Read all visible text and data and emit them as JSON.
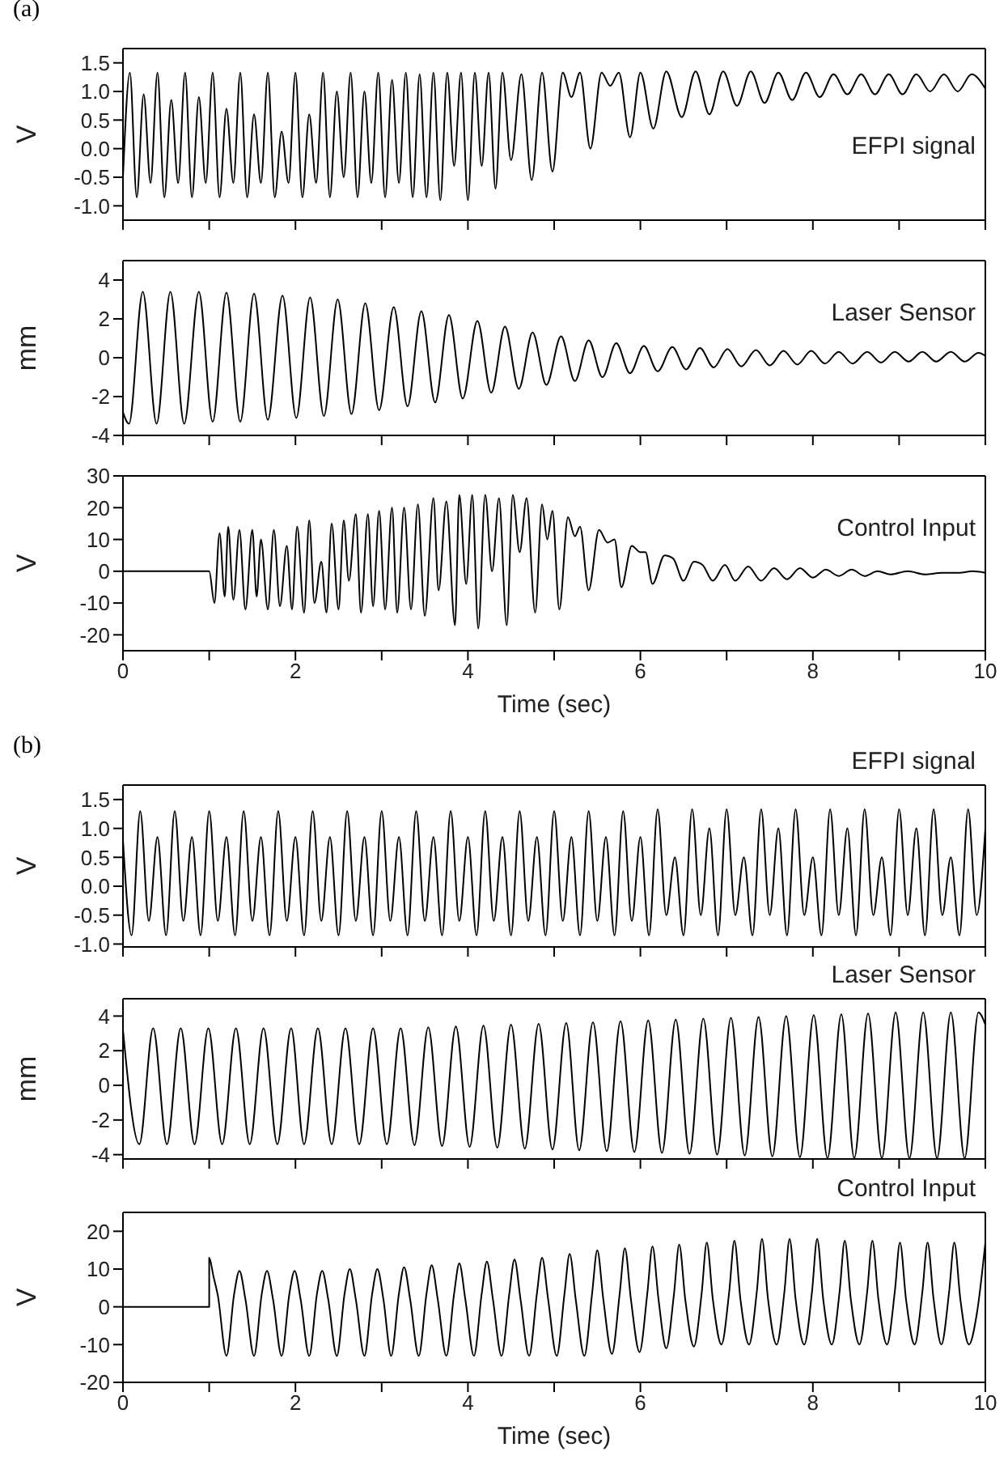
{
  "chart_data": [
    {
      "type": "line",
      "title": "EFPI signal",
      "ylabel": "V",
      "annotations": [
        "(a)"
      ],
      "tick_labels": "y",
      "xlim": [
        0,
        10
      ],
      "xticks": [
        0,
        {
          "value": 1,
          "label": null
        },
        2,
        {
          "value": 3,
          "label": null
        },
        4,
        {
          "value": 5,
          "label": null
        },
        6,
        {
          "value": 7,
          "label": null
        },
        8,
        {
          "value": 9,
          "label": null
        },
        10
      ],
      "ylim": [
        -1.25,
        1.75
      ],
      "yticks": [
        {
          "value": -1,
          "label": "-1.0"
        },
        -0.5,
        {
          "value": 0,
          "label": "0.0"
        },
        0.5,
        {
          "value": 1,
          "label": "1.0"
        },
        1.5
      ],
      "series": [
        {
          "color": "#000000",
          "x": [
            0,
            0.08,
            0.16,
            0.24,
            0.32,
            0.4,
            0.48,
            0.56,
            0.64,
            0.72,
            0.8,
            0.88,
            0.96,
            1.04,
            1.12,
            1.2,
            1.28,
            1.36,
            1.44,
            1.52,
            1.6,
            1.68,
            1.76,
            1.84,
            1.92,
            2,
            2.08,
            2.16,
            2.24,
            2.32,
            2.4,
            2.48,
            2.56,
            2.64,
            2.72,
            2.8,
            2.88,
            2.96,
            3.04,
            3.12,
            3.2,
            3.28,
            3.36,
            3.44,
            3.52,
            3.6,
            3.68,
            3.76,
            3.84,
            3.92,
            4,
            4.08,
            4.16,
            4.24,
            4.32,
            4.4,
            4.5,
            4.62,
            4.74,
            4.86,
            4.98,
            5.1,
            5.2,
            5.3,
            5.42,
            5.55,
            5.65,
            5.75,
            5.88,
            6,
            6.15,
            6.3,
            6.48,
            6.64,
            6.8,
            6.96,
            7.12,
            7.28,
            7.44,
            7.6,
            7.76,
            7.92,
            8.08,
            8.24,
            8.4,
            8.56,
            8.72,
            8.88,
            9.04,
            9.2,
            9.36,
            9.52,
            9.68,
            9.84,
            10
          ],
          "values": [
            -0.5,
            1.33,
            -0.85,
            0.95,
            -0.6,
            1.33,
            -0.85,
            0.85,
            -0.6,
            1.33,
            -0.85,
            0.9,
            -0.6,
            1.33,
            -0.85,
            0.7,
            -0.6,
            1.33,
            -0.85,
            0.6,
            -0.6,
            1.33,
            -0.85,
            0.3,
            -0.6,
            1.33,
            -0.85,
            0.6,
            -0.6,
            1.33,
            -0.85,
            1,
            -0.5,
            1.33,
            -0.85,
            1,
            -0.6,
            1.33,
            -0.85,
            1.2,
            -0.6,
            1.33,
            -0.85,
            1.3,
            -0.85,
            1.33,
            -0.9,
            1.33,
            -0.3,
            1.33,
            -0.9,
            1.33,
            -0.3,
            1.33,
            -0.7,
            1.33,
            -0.2,
            1.3,
            -0.55,
            1.33,
            -0.4,
            1.33,
            0.9,
            1.33,
            0,
            1.33,
            1.1,
            1.33,
            0.2,
            1.33,
            0.35,
            1.35,
            0.55,
            1.35,
            0.6,
            1.35,
            0.75,
            1.35,
            0.8,
            1.33,
            0.85,
            1.33,
            0.9,
            1.3,
            0.95,
            1.3,
            0.95,
            1.3,
            0.95,
            1.3,
            1,
            1.3,
            1,
            1.3,
            1.05
          ]
        }
      ]
    },
    {
      "type": "line",
      "title": "Laser Sensor",
      "ylabel": "mm",
      "tick_labels": "y",
      "xlim": [
        0,
        10
      ],
      "xticks": [
        0,
        {
          "value": 1,
          "label": null
        },
        2,
        {
          "value": 3,
          "label": null
        },
        4,
        {
          "value": 5,
          "label": null
        },
        6,
        {
          "value": 7,
          "label": null
        },
        8,
        {
          "value": 9,
          "label": null
        },
        10
      ],
      "ylim": [
        -4,
        5
      ],
      "yticks": [
        -4,
        -2,
        0,
        2,
        4
      ],
      "series": [
        {
          "color": "#000000",
          "x": [
            0,
            0.07,
            0.23,
            0.39,
            0.55,
            0.71,
            0.88,
            1.04,
            1.2,
            1.36,
            1.52,
            1.68,
            1.85,
            2.01,
            2.17,
            2.33,
            2.49,
            2.65,
            2.81,
            2.97,
            3.14,
            3.3,
            3.46,
            3.62,
            3.78,
            3.94,
            4.11,
            4.27,
            4.43,
            4.59,
            4.75,
            4.91,
            5.08,
            5.24,
            5.4,
            5.56,
            5.72,
            5.88,
            6.04,
            6.2,
            6.37,
            6.53,
            6.69,
            6.85,
            7.01,
            7.17,
            7.34,
            7.5,
            7.66,
            7.82,
            7.98,
            8.14,
            8.3,
            8.46,
            8.63,
            8.79,
            8.95,
            9.11,
            9.27,
            9.43,
            9.6,
            9.76,
            9.92,
            10
          ],
          "values": [
            -2.8,
            -3.4,
            3.4,
            -3.4,
            3.4,
            -3.4,
            3.4,
            -3.3,
            3.35,
            -3.3,
            3.3,
            -3.2,
            3.2,
            -3.1,
            3.1,
            -3,
            3,
            -2.9,
            2.8,
            -2.7,
            2.6,
            -2.5,
            2.4,
            -2.3,
            2.2,
            -2.1,
            1.9,
            -1.8,
            1.6,
            -1.6,
            1.3,
            -1.4,
            1.1,
            -1.2,
            0.9,
            -1,
            0.75,
            -0.8,
            0.6,
            -0.7,
            0.55,
            -0.6,
            0.5,
            -0.5,
            0.45,
            -0.45,
            0.4,
            -0.4,
            0.35,
            -0.35,
            0.35,
            -0.3,
            0.3,
            -0.3,
            0.3,
            -0.25,
            0.3,
            -0.2,
            0.3,
            -0.2,
            0.3,
            -0.2,
            0.25,
            0.1
          ]
        }
      ]
    },
    {
      "type": "line",
      "title": "Control Input",
      "ylabel": "V",
      "xlabel": "Time (sec)",
      "xlim": [
        0,
        10
      ],
      "xticks": [
        0,
        {
          "value": 1,
          "label": null
        },
        2,
        {
          "value": 3,
          "label": null
        },
        4,
        {
          "value": 5,
          "label": null
        },
        6,
        {
          "value": 7,
          "label": null
        },
        8,
        {
          "value": 9,
          "label": null
        },
        10
      ],
      "ylim": [
        -25,
        30
      ],
      "yticks": [
        -20,
        -10,
        0,
        10,
        20,
        30
      ],
      "series": [
        {
          "color": "#000000",
          "x": [
            0,
            1,
            1.06,
            1.12,
            1.18,
            1.22,
            1.28,
            1.35,
            1.42,
            1.5,
            1.55,
            1.6,
            1.68,
            1.75,
            1.82,
            1.9,
            1.96,
            2.02,
            2.1,
            2.16,
            2.22,
            2.3,
            2.36,
            2.42,
            2.5,
            2.56,
            2.62,
            2.7,
            2.76,
            2.84,
            2.9,
            2.97,
            3.04,
            3.12,
            3.18,
            3.26,
            3.34,
            3.42,
            3.5,
            3.6,
            3.66,
            3.75,
            3.85,
            3.9,
            3.98,
            4.05,
            4.12,
            4.2,
            4.28,
            4.36,
            4.45,
            4.52,
            4.6,
            4.68,
            4.78,
            4.86,
            4.92,
            4.98,
            5.06,
            5.16,
            5.24,
            5.3,
            5.4,
            5.52,
            5.62,
            5.7,
            5.78,
            5.9,
            6,
            6.06,
            6.14,
            6.28,
            6.38,
            6.5,
            6.62,
            6.72,
            6.84,
            6.98,
            7.1,
            7.25,
            7.4,
            7.55,
            7.7,
            7.85,
            8,
            8.15,
            8.3,
            8.45,
            8.6,
            8.75,
            8.9,
            9.1,
            9.3,
            9.5,
            9.7,
            9.85,
            10
          ],
          "values": [
            0,
            0,
            -10,
            12,
            -8,
            14,
            -9,
            13,
            -12,
            13,
            -8,
            10,
            -12,
            13,
            -11,
            8,
            -12,
            14,
            -13,
            16,
            -10,
            3,
            -13,
            15,
            -12,
            16,
            -3,
            18,
            -13,
            18,
            -11,
            19,
            -12,
            20,
            -13,
            20,
            -12,
            21,
            -14,
            23,
            -6,
            22,
            -17,
            24,
            -4,
            24,
            -18,
            24,
            0,
            23,
            -17,
            24,
            6,
            23,
            -13,
            21,
            10,
            19,
            -12,
            17,
            11,
            14,
            -6,
            13,
            9,
            10,
            -5,
            8,
            6,
            6,
            -4,
            5,
            4,
            -3,
            3,
            2,
            -3,
            2,
            -3,
            1.5,
            -3,
            1,
            -2.5,
            1,
            -2,
            0.5,
            -1.5,
            0.5,
            -1.5,
            0,
            -1,
            0,
            -1,
            -0.5,
            -0.5,
            0,
            -0.5
          ]
        }
      ]
    },
    {
      "type": "line",
      "title": "EFPI signal",
      "ylabel": "V",
      "annotations": [
        "(b)"
      ],
      "tick_labels": "y",
      "xlim": [
        0,
        10
      ],
      "xticks": [
        0,
        {
          "value": 1,
          "label": null
        },
        2,
        {
          "value": 3,
          "label": null
        },
        4,
        {
          "value": 5,
          "label": null
        },
        6,
        {
          "value": 7,
          "label": null
        },
        8,
        {
          "value": 9,
          "label": null
        },
        10
      ],
      "ylim": [
        -1.05,
        1.75
      ],
      "yticks": [
        {
          "value": -1,
          "label": "-1.0"
        },
        -0.5,
        {
          "value": 0,
          "label": "0.0"
        },
        0.5,
        {
          "value": 1,
          "label": "1.0"
        },
        1.5
      ],
      "series": [
        {
          "color": "#000000",
          "x": [
            0,
            0.1,
            0.2,
            0.3,
            0.4,
            0.5,
            0.6,
            0.7,
            0.8,
            0.9,
            1,
            1.1,
            1.2,
            1.3,
            1.4,
            1.5,
            1.6,
            1.7,
            1.8,
            1.9,
            2,
            2.1,
            2.2,
            2.3,
            2.4,
            2.5,
            2.6,
            2.7,
            2.8,
            2.9,
            3,
            3.1,
            3.2,
            3.3,
            3.4,
            3.5,
            3.6,
            3.7,
            3.8,
            3.9,
            4,
            4.1,
            4.2,
            4.3,
            4.4,
            4.5,
            4.6,
            4.7,
            4.8,
            4.9,
            5,
            5.1,
            5.2,
            5.3,
            5.4,
            5.5,
            5.6,
            5.7,
            5.8,
            5.9,
            6,
            6.1,
            6.2,
            6.3,
            6.4,
            6.5,
            6.6,
            6.7,
            6.8,
            6.9,
            7,
            7.1,
            7.2,
            7.3,
            7.4,
            7.5,
            7.6,
            7.7,
            7.8,
            7.9,
            8,
            8.1,
            8.2,
            8.3,
            8.4,
            8.5,
            8.6,
            8.7,
            8.8,
            8.9,
            9,
            9.1,
            9.2,
            9.3,
            9.4,
            9.5,
            9.6,
            9.7,
            9.8,
            9.9,
            10
          ],
          "values": [
            0.8,
            -0.85,
            1.3,
            -0.6,
            0.85,
            -0.85,
            1.3,
            -0.6,
            0.85,
            -0.85,
            1.3,
            -0.6,
            0.85,
            -0.85,
            1.3,
            -0.6,
            0.85,
            -0.85,
            1.3,
            -0.6,
            0.85,
            -0.85,
            1.3,
            -0.6,
            0.85,
            -0.85,
            1.3,
            -0.6,
            0.85,
            -0.85,
            1.3,
            -0.6,
            0.85,
            -0.85,
            1.3,
            -0.6,
            0.85,
            -0.85,
            1.3,
            -0.6,
            0.85,
            -0.85,
            1.3,
            -0.6,
            0.85,
            -0.85,
            1.3,
            -0.6,
            0.85,
            -0.85,
            1.3,
            -0.6,
            0.85,
            -0.85,
            1.3,
            -0.6,
            0.85,
            -0.85,
            1.3,
            -0.6,
            0.85,
            -0.85,
            1.33,
            -0.5,
            0.5,
            -0.85,
            1.33,
            -0.5,
            1,
            -0.85,
            1.33,
            -0.5,
            0.5,
            -0.85,
            1.33,
            -0.5,
            1,
            -0.85,
            1.33,
            -0.5,
            0.5,
            -0.85,
            1.33,
            -0.5,
            1,
            -0.85,
            1.33,
            -0.5,
            0.5,
            -0.85,
            1.33,
            -0.5,
            1,
            -0.85,
            1.33,
            -0.5,
            0.5,
            -0.85,
            1.33,
            -0.5,
            1
          ]
        }
      ]
    },
    {
      "type": "line",
      "title": "Laser Sensor",
      "ylabel": "mm",
      "tick_labels": "y",
      "xlim": [
        0,
        10
      ],
      "xticks": [
        0,
        {
          "value": 1,
          "label": null
        },
        2,
        {
          "value": 3,
          "label": null
        },
        4,
        {
          "value": 5,
          "label": null
        },
        6,
        {
          "value": 7,
          "label": null
        },
        8,
        {
          "value": 9,
          "label": null
        },
        10
      ],
      "ylim": [
        -4.25,
        5
      ],
      "yticks": [
        -4,
        -2,
        0,
        2,
        4
      ],
      "series": [
        {
          "color": "#000000",
          "x": [
            0,
            0.19,
            0.35,
            0.51,
            0.67,
            0.83,
            0.99,
            1.15,
            1.31,
            1.47,
            1.63,
            1.79,
            1.95,
            2.1,
            2.26,
            2.42,
            2.58,
            2.74,
            2.9,
            3.06,
            3.22,
            3.38,
            3.54,
            3.7,
            3.86,
            4.02,
            4.18,
            4.34,
            4.5,
            4.66,
            4.82,
            4.98,
            5.14,
            5.29,
            5.45,
            5.61,
            5.77,
            5.93,
            6.09,
            6.25,
            6.41,
            6.57,
            6.73,
            6.89,
            7.05,
            7.21,
            7.37,
            7.53,
            7.69,
            7.85,
            8.01,
            8.17,
            8.33,
            8.48,
            8.64,
            8.8,
            8.96,
            9.12,
            9.28,
            9.44,
            9.6,
            9.76,
            9.92,
            10
          ],
          "values": [
            3.2,
            -3.4,
            3.3,
            -3.4,
            3.3,
            -3.4,
            3.3,
            -3.4,
            3.3,
            -3.4,
            3.3,
            -3.4,
            3.3,
            -3.4,
            3.3,
            -3.4,
            3.3,
            -3.4,
            3.3,
            -3.4,
            3.3,
            -3.45,
            3.35,
            -3.5,
            3.4,
            -3.55,
            3.45,
            -3.6,
            3.5,
            -3.65,
            3.55,
            -3.7,
            3.6,
            -3.75,
            3.65,
            -3.8,
            3.7,
            -3.85,
            3.75,
            -3.9,
            3.8,
            -3.95,
            3.85,
            -4,
            3.9,
            -4.05,
            3.95,
            -4.1,
            4,
            -4.15,
            4.05,
            -4.2,
            4.1,
            -4.2,
            4.15,
            -4.2,
            4.2,
            -4.2,
            4.2,
            -4.2,
            4.2,
            -4.2,
            4.2,
            3.5
          ]
        }
      ]
    },
    {
      "type": "line",
      "title": "Control Input",
      "ylabel": "V",
      "xlabel": "Time (sec)",
      "xlim": [
        0,
        10
      ],
      "xticks": [
        0,
        {
          "value": 1,
          "label": null
        },
        2,
        {
          "value": 3,
          "label": null
        },
        4,
        {
          "value": 5,
          "label": null
        },
        6,
        {
          "value": 7,
          "label": null
        },
        8,
        {
          "value": 9,
          "label": null
        },
        10
      ],
      "ylim": [
        -20,
        25
      ],
      "yticks": [
        -20,
        -10,
        0,
        10,
        20
      ],
      "series": [
        {
          "color": "#000000",
          "x": [
            0,
            1,
            1,
            1.05,
            1.1,
            1.2,
            1.29,
            1.35,
            1.42,
            1.52,
            1.61,
            1.67,
            1.74,
            1.84,
            1.93,
            1.99,
            2.06,
            2.16,
            2.25,
            2.31,
            2.38,
            2.48,
            2.57,
            2.63,
            2.7,
            2.8,
            2.89,
            2.95,
            3.02,
            3.11,
            3.2,
            3.26,
            3.33,
            3.43,
            3.52,
            3.58,
            3.65,
            3.75,
            3.84,
            3.9,
            3.97,
            4.07,
            4.16,
            4.22,
            4.29,
            4.39,
            4.48,
            4.54,
            4.61,
            4.71,
            4.8,
            4.86,
            4.93,
            5.03,
            5.12,
            5.18,
            5.25,
            5.35,
            5.44,
            5.5,
            5.57,
            5.67,
            5.76,
            5.82,
            5.89,
            5.99,
            6.08,
            6.14,
            6.21,
            6.3,
            6.39,
            6.45,
            6.52,
            6.62,
            6.71,
            6.77,
            6.84,
            6.94,
            7.03,
            7.09,
            7.16,
            7.26,
            7.35,
            7.41,
            7.48,
            7.58,
            7.67,
            7.73,
            7.8,
            7.9,
            7.99,
            8.05,
            8.12,
            8.22,
            8.31,
            8.37,
            8.44,
            8.54,
            8.63,
            8.69,
            8.76,
            8.86,
            8.95,
            9.01,
            9.08,
            9.18,
            9.27,
            9.33,
            9.4,
            9.49,
            9.58,
            9.64,
            9.71,
            9.81,
            9.9,
            10
          ],
          "values": [
            0,
            0,
            13,
            8,
            3,
            -13,
            3.5,
            9.5,
            2,
            -13,
            3.5,
            9.5,
            2,
            -13,
            3.5,
            9.5,
            2,
            -13,
            3.5,
            9.5,
            2,
            -13,
            3.5,
            10,
            2,
            -13,
            3.5,
            10,
            2,
            -13,
            3.5,
            10.5,
            2,
            -13,
            3.5,
            11,
            2,
            -13,
            3.5,
            11.5,
            2,
            -13,
            3.5,
            12,
            2,
            -13,
            3.5,
            12.5,
            2,
            -13,
            3.5,
            13,
            2,
            -13,
            3.5,
            14,
            2,
            -13,
            3.5,
            15,
            2,
            -12.5,
            3.5,
            15.5,
            2,
            -12,
            3.5,
            16,
            2,
            -11,
            3.5,
            16.5,
            2,
            -10.5,
            3.5,
            17,
            2,
            -10,
            4,
            17.5,
            2,
            -10,
            4,
            18,
            2,
            -10,
            4,
            18,
            2,
            -10,
            4,
            18,
            2,
            -10,
            4,
            17.5,
            2,
            -10,
            4,
            17.5,
            2,
            -10,
            4,
            17,
            2,
            -10,
            4,
            17,
            2,
            -10,
            4,
            17,
            2,
            -10,
            -2,
            17
          ]
        }
      ]
    }
  ]
}
